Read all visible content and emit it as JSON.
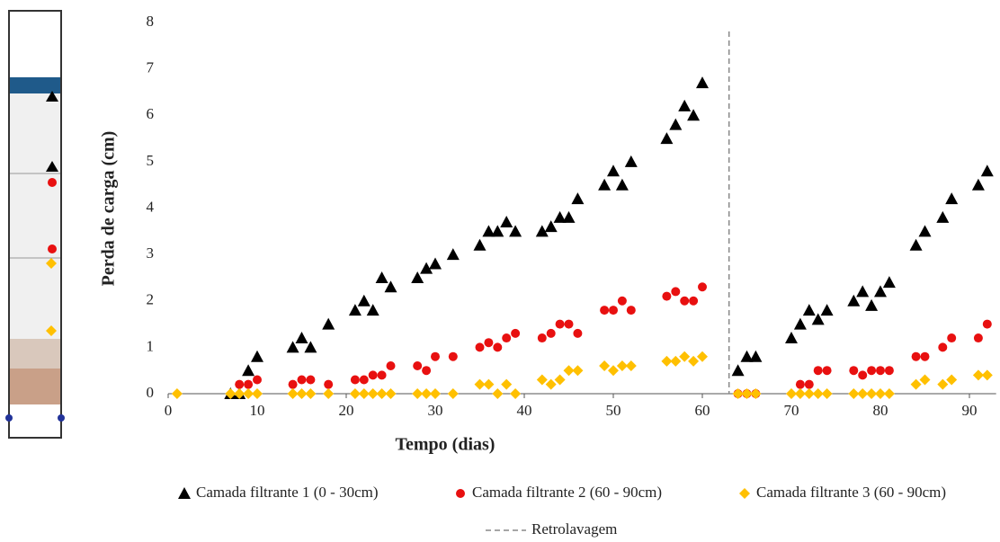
{
  "chart_data": {
    "type": "scatter",
    "xlabel": "Tempo (dias)",
    "ylabel": "Perda de carga (cm)",
    "xlim": [
      0,
      93
    ],
    "xticks": [
      0,
      10,
      20,
      30,
      40,
      50,
      60,
      70,
      80,
      90
    ],
    "ylim": [
      0,
      8
    ],
    "yticks": [
      0,
      1,
      2,
      3,
      4,
      5,
      6,
      7,
      8
    ],
    "series": [
      {
        "name": "Camada filtrante 1 (0 - 30cm)",
        "color": "#000000",
        "marker": "triangle",
        "x": [
          7,
          8,
          9,
          10,
          14,
          15,
          16,
          18,
          21,
          22,
          23,
          24,
          25,
          28,
          29,
          30,
          32,
          35,
          36,
          37,
          38,
          39,
          42,
          43,
          44,
          45,
          46,
          49,
          50,
          51,
          52,
          56,
          57,
          58,
          59,
          60,
          64,
          65,
          66,
          70,
          71,
          72,
          73,
          74,
          77,
          78,
          79,
          80,
          81,
          84,
          85,
          87,
          88,
          91,
          92
        ],
        "values": [
          0,
          0,
          0.5,
          0.8,
          1.0,
          1.2,
          1.0,
          1.5,
          1.8,
          2.0,
          1.8,
          2.5,
          2.3,
          2.5,
          2.7,
          2.8,
          3.0,
          3.2,
          3.5,
          3.5,
          3.7,
          3.5,
          3.5,
          3.6,
          3.8,
          3.8,
          4.2,
          4.5,
          4.8,
          4.5,
          5.0,
          5.5,
          5.8,
          6.2,
          6.0,
          6.7,
          0.5,
          0.8,
          0.8,
          1.2,
          1.5,
          1.8,
          1.6,
          1.8,
          2.0,
          2.2,
          1.9,
          2.2,
          2.4,
          3.2,
          3.5,
          3.8,
          4.2,
          4.5,
          4.8
        ]
      },
      {
        "name": "Camada filtrante 2 (60 - 90cm)",
        "color": "#e81010",
        "marker": "circle",
        "x": [
          8,
          9,
          10,
          14,
          15,
          16,
          18,
          21,
          22,
          23,
          24,
          25,
          28,
          29,
          30,
          32,
          35,
          36,
          37,
          38,
          39,
          42,
          43,
          44,
          45,
          46,
          49,
          50,
          51,
          52,
          56,
          57,
          58,
          59,
          60,
          64,
          65,
          66,
          71,
          72,
          73,
          74,
          77,
          78,
          79,
          80,
          81,
          84,
          85,
          87,
          88,
          91,
          92
        ],
        "values": [
          0.2,
          0.2,
          0.3,
          0.2,
          0.3,
          0.3,
          0.2,
          0.3,
          0.3,
          0.4,
          0.4,
          0.6,
          0.6,
          0.5,
          0.8,
          0.8,
          1.0,
          1.1,
          1.0,
          1.2,
          1.3,
          1.2,
          1.3,
          1.5,
          1.5,
          1.3,
          1.8,
          1.8,
          2.0,
          1.8,
          2.1,
          2.2,
          2.0,
          2.0,
          2.3,
          0,
          0,
          0,
          0.2,
          0.2,
          0.5,
          0.5,
          0.5,
          0.4,
          0.5,
          0.5,
          0.5,
          0.8,
          0.8,
          1.0,
          1.2,
          1.2,
          1.5
        ]
      },
      {
        "name": "Camada filtrante 3 (60 - 90cm)",
        "color": "#ffc000",
        "marker": "diamond",
        "x": [
          1,
          7,
          8,
          9,
          10,
          14,
          15,
          16,
          18,
          21,
          22,
          23,
          24,
          25,
          28,
          29,
          30,
          32,
          35,
          36,
          37,
          38,
          39,
          42,
          43,
          44,
          45,
          46,
          49,
          50,
          51,
          52,
          56,
          57,
          58,
          59,
          60,
          64,
          65,
          66,
          70,
          71,
          72,
          73,
          74,
          77,
          78,
          79,
          80,
          81,
          84,
          85,
          87,
          88,
          91,
          92
        ],
        "values": [
          0,
          0,
          0,
          0,
          0,
          0,
          0,
          0,
          0,
          0,
          0,
          0,
          0,
          0,
          0,
          0,
          0,
          0,
          0.2,
          0.2,
          0,
          0.2,
          0,
          0.3,
          0.2,
          0.3,
          0.5,
          0.5,
          0.6,
          0.5,
          0.6,
          0.6,
          0.7,
          0.7,
          0.8,
          0.7,
          0.8,
          0,
          0,
          0,
          0,
          0,
          0,
          0,
          0,
          0,
          0,
          0,
          0,
          0,
          0.2,
          0.3,
          0.2,
          0.3,
          0.4,
          0.4
        ]
      }
    ],
    "reference_line": {
      "name": "Retrolavagem",
      "x": 63,
      "color": "#888888"
    }
  }
}
